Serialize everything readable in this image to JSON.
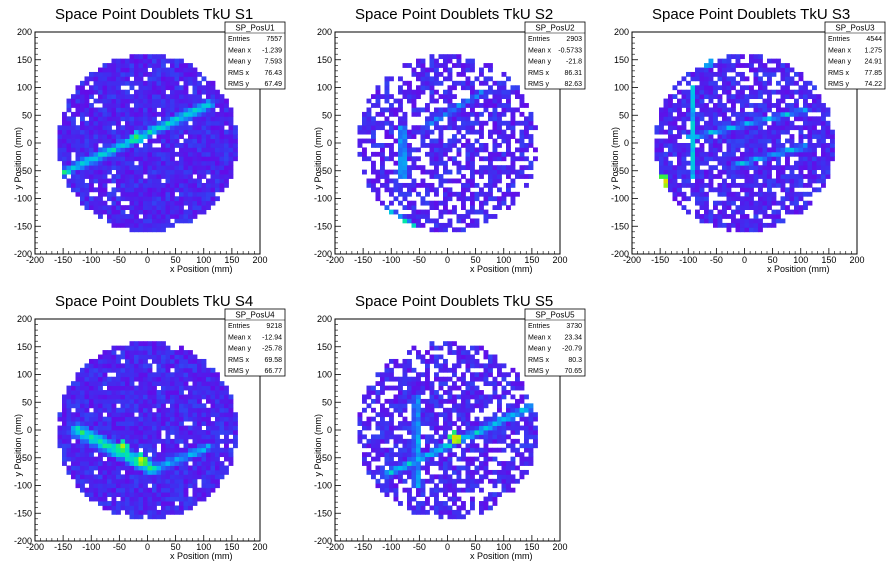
{
  "chart_data": [
    {
      "type": "heatmap",
      "title": "Space Point Doublets TkU S1",
      "xlabel": "x Position (mm)",
      "ylabel": "y Position (mm)",
      "xlim": [
        -200,
        200
      ],
      "ylim": [
        -200,
        200
      ],
      "xticks": [
        "-200",
        "-150",
        "-100",
        "-50",
        "0",
        "50",
        "100",
        "150",
        "200"
      ],
      "yticks": [
        "-200",
        "-150",
        "-100",
        "-50",
        "0",
        "50",
        "100",
        "150",
        "200"
      ],
      "stats": {
        "name": "SP_PosU1",
        "rows": [
          [
            "Entries",
            "7557"
          ],
          [
            "Mean x",
            "-1.239"
          ],
          [
            "Mean y",
            "7.593"
          ],
          [
            "RMS x",
            "76.43"
          ],
          [
            "RMS y",
            "67.49"
          ]
        ]
      },
      "features": {
        "radius": 160,
        "occupancy": 0.92,
        "lines": [
          {
            "p1": [
              -165,
              -60
            ],
            "p2": [
              110,
              70
            ],
            "width": 10,
            "strength": 0.55
          }
        ],
        "hotspots": [
          {
            "x": -20,
            "y": 10,
            "value": 0.75
          }
        ]
      }
    },
    {
      "type": "heatmap",
      "title": "Space Point Doublets TkU S2",
      "xlabel": "x Position (mm)",
      "ylabel": "y Position (mm)",
      "xlim": [
        -200,
        200
      ],
      "ylim": [
        -200,
        200
      ],
      "xticks": [
        "-200",
        "-150",
        "-100",
        "-50",
        "0",
        "50",
        "100",
        "150",
        "200"
      ],
      "yticks": [
        "-200",
        "-150",
        "-100",
        "-50",
        "0",
        "50",
        "100",
        "150",
        "200"
      ],
      "stats": {
        "name": "SP_PosU2",
        "rows": [
          [
            "Entries",
            "2903"
          ],
          [
            "Mean x",
            "-0.5733"
          ],
          [
            "Mean y",
            "-21.8"
          ],
          [
            "RMS x",
            "86.31"
          ],
          [
            "RMS y",
            "82.63"
          ]
        ]
      },
      "features": {
        "radius": 160,
        "occupancy": 0.62,
        "lines": [
          {
            "p1": [
              -80,
              30
            ],
            "p2": [
              -80,
              -60
            ],
            "width": 6,
            "strength": 0.6
          },
          {
            "p1": [
              -150,
              -100
            ],
            "p2": [
              -60,
              -150
            ],
            "width": 8,
            "strength": 0.55
          },
          {
            "p1": [
              -40,
              30
            ],
            "p2": [
              60,
              90
            ],
            "width": 6,
            "strength": 0.4
          }
        ],
        "hotspots": []
      }
    },
    {
      "type": "heatmap",
      "title": "Space Point Doublets TkU S3",
      "xlabel": "x Position (mm)",
      "ylabel": "y Position (mm)",
      "xlim": [
        -200,
        200
      ],
      "ylim": [
        -200,
        200
      ],
      "xticks": [
        "-200",
        "-150",
        "-100",
        "-50",
        "0",
        "50",
        "100",
        "150",
        "200"
      ],
      "yticks": [
        "-200",
        "-150",
        "-100",
        "-50",
        "0",
        "50",
        "100",
        "150",
        "200"
      ],
      "stats": {
        "name": "SP_PosU3",
        "rows": [
          [
            "Entries",
            "4544"
          ],
          [
            "Mean x",
            "1.275"
          ],
          [
            "Mean y",
            "24.91"
          ],
          [
            "RMS x",
            "77.85"
          ],
          [
            "RMS y",
            "74.22"
          ]
        ]
      },
      "features": {
        "radius": 160,
        "occupancy": 0.78,
        "lines": [
          {
            "p1": [
              -90,
              100
            ],
            "p2": [
              -90,
              -60
            ],
            "width": 6,
            "strength": 0.55
          },
          {
            "p1": [
              -100,
              10
            ],
            "p2": [
              110,
              60
            ],
            "width": 6,
            "strength": 0.45
          },
          {
            "p1": [
              -20,
              -40
            ],
            "p2": [
              110,
              -5
            ],
            "width": 6,
            "strength": 0.45
          }
        ],
        "hotspots": [
          {
            "x": -145,
            "y": -70,
            "value": 0.98
          },
          {
            "x": -65,
            "y": 145,
            "value": 0.6
          }
        ]
      }
    },
    {
      "type": "heatmap",
      "title": "Space Point Doublets TkU S4",
      "xlabel": "x Position (mm)",
      "ylabel": "y Position (mm)",
      "xlim": [
        -200,
        200
      ],
      "ylim": [
        -200,
        200
      ],
      "xticks": [
        "-200",
        "-150",
        "-100",
        "-50",
        "0",
        "50",
        "100",
        "150",
        "200"
      ],
      "yticks": [
        "-200",
        "-150",
        "-100",
        "-50",
        "0",
        "50",
        "100",
        "150",
        "200"
      ],
      "stats": {
        "name": "SP_PosU4",
        "rows": [
          [
            "Entries",
            "9218"
          ],
          [
            "Mean x",
            "-12.94"
          ],
          [
            "Mean y",
            "-25.78"
          ],
          [
            "RMS x",
            "69.58"
          ],
          [
            "RMS y",
            "66.77"
          ]
        ]
      },
      "features": {
        "radius": 160,
        "occupancy": 0.95,
        "lines": [
          {
            "p1": [
              -125,
              0
            ],
            "p2": [
              10,
              -70
            ],
            "width": 14,
            "strength": 0.6
          },
          {
            "p1": [
              10,
              -70
            ],
            "p2": [
              110,
              -30
            ],
            "width": 10,
            "strength": 0.45
          }
        ],
        "hotspots": [
          {
            "x": -45,
            "y": -30,
            "value": 0.85
          },
          {
            "x": -10,
            "y": -55,
            "value": 0.9
          }
        ]
      }
    },
    {
      "type": "heatmap",
      "title": "Space Point Doublets TkU S5",
      "xlabel": "x Position (mm)",
      "ylabel": "y Position (mm)",
      "xlim": [
        -200,
        200
      ],
      "ylim": [
        -200,
        200
      ],
      "xticks": [
        "-200",
        "-150",
        "-100",
        "-50",
        "0",
        "50",
        "100",
        "150",
        "200"
      ],
      "yticks": [
        "-200",
        "-150",
        "-100",
        "-50",
        "0",
        "50",
        "100",
        "150",
        "200"
      ],
      "stats": {
        "name": "SP_PosU5",
        "rows": [
          [
            "Entries",
            "3730"
          ],
          [
            "Mean x",
            "23.34"
          ],
          [
            "Mean y",
            "-20.79"
          ],
          [
            "RMS x",
            "80.3"
          ],
          [
            "RMS y",
            "70.65"
          ]
        ]
      },
      "features": {
        "radius": 160,
        "occupancy": 0.66,
        "lines": [
          {
            "p1": [
              -55,
              60
            ],
            "p2": [
              -55,
              -100
            ],
            "width": 6,
            "strength": 0.55
          },
          {
            "p1": [
              -110,
              -80
            ],
            "p2": [
              155,
              45
            ],
            "width": 8,
            "strength": 0.5
          }
        ],
        "hotspots": [
          {
            "x": 15,
            "y": -15,
            "value": 0.95
          }
        ]
      }
    }
  ]
}
